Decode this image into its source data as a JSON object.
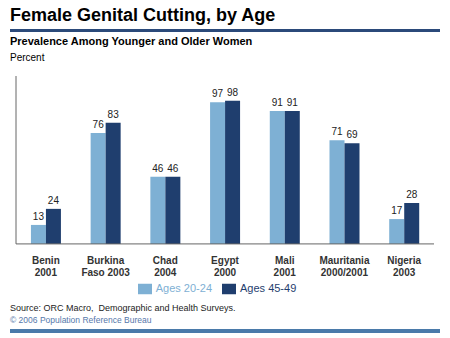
{
  "chart_data": {
    "type": "bar",
    "title": "Female Genital Cutting, by Age",
    "subtitle": "Prevalence Among Younger and Older Women",
    "y_label": "Percent",
    "categories": [
      "Benin\n2001",
      "Burkina\nFaso 2003",
      "Chad\n2004",
      "Egypt\n2000",
      "Mali\n2001",
      "Mauritania\n2000/2001",
      "Nigeria\n2003"
    ],
    "series": [
      {
        "name": "Ages 20-24",
        "color": "#7EB0D4",
        "values": [
          13,
          76,
          46,
          97,
          91,
          71,
          17
        ]
      },
      {
        "name": "Ages 45-49",
        "color": "#1F3E6E",
        "values": [
          24,
          83,
          46,
          98,
          91,
          69,
          28
        ]
      }
    ],
    "ylim": [
      0,
      115
    ],
    "grid": false,
    "data_labels": true,
    "tick_labels": "x",
    "legend": "bottom",
    "annotations": [
      "Source: ORC Macro,  Demographic and Health Surveys.",
      "© 2006 Population Reference Bureau"
    ]
  }
}
